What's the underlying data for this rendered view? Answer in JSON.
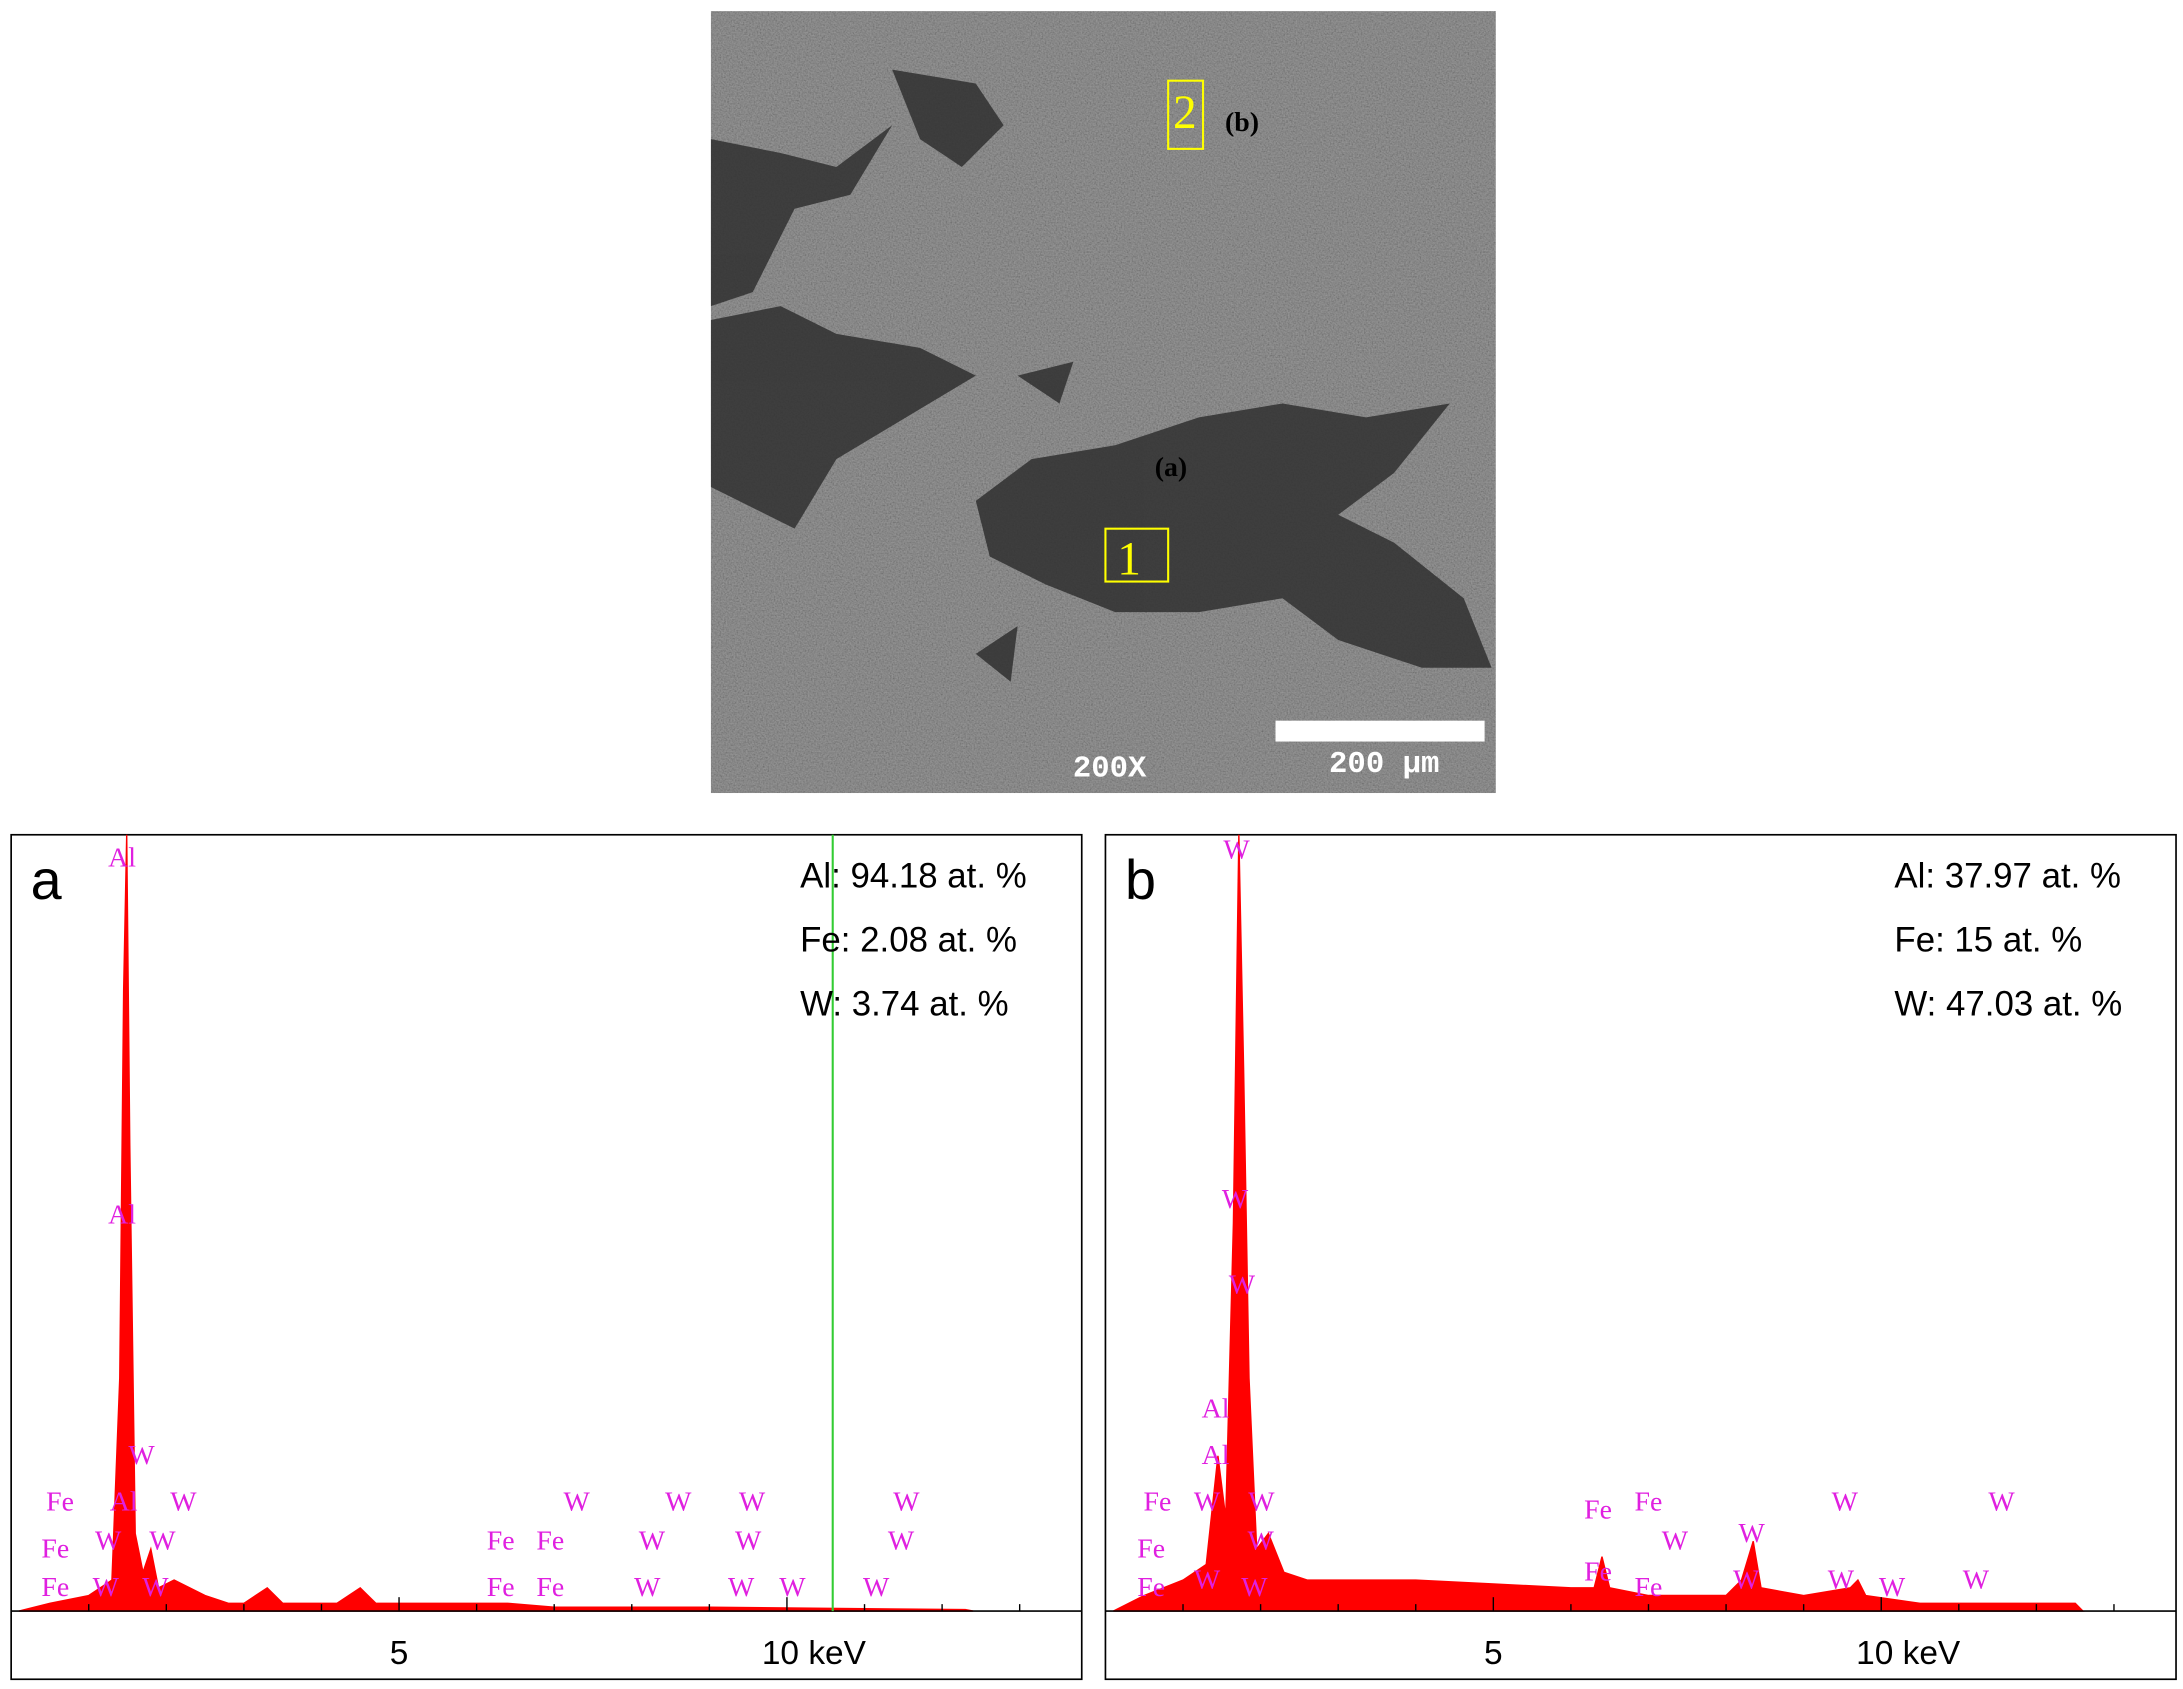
{
  "sem": {
    "labels": {
      "area2": "2",
      "area2_tag": "(b)",
      "area1_tag": "(a)",
      "area1": "1",
      "magnification": "200X",
      "scale": "200 μm"
    }
  },
  "chart_data": [
    {
      "type": "area",
      "panel_label": "a",
      "color": "#ff0000",
      "label_color": "#e020e0",
      "annotations": [
        "Al: 94.18 at. %",
        "Fe: 2.08 at. %",
        "W: 3.74 at. %"
      ],
      "x": [
        0.1,
        0.5,
        1.0,
        1.3,
        1.4,
        1.45,
        1.49,
        1.53,
        1.6,
        1.7,
        1.8,
        1.9,
        2.1,
        2.5,
        2.8,
        3.0,
        3.3,
        3.5,
        4.0,
        4.2,
        4.5,
        4.7,
        5.5,
        6.4,
        7,
        9,
        11,
        12.3,
        12.4
      ],
      "values": [
        0,
        1,
        2,
        4,
        30,
        80,
        100,
        60,
        10,
        5,
        8,
        3,
        4,
        2,
        1,
        1,
        3,
        1,
        1,
        1,
        3,
        1,
        1,
        1,
        0.5,
        0.5,
        0.3,
        0.2,
        0
      ],
      "xlim": [
        0,
        13.8
      ],
      "xticks": [
        5,
        {
          "value": 10,
          "label": "10 keV"
        }
      ],
      "xminorticks": [
        1,
        2,
        3,
        4,
        6,
        7,
        8,
        9,
        11,
        12,
        13
      ],
      "ylim": [
        0,
        100
      ],
      "cursor_x": 10.59,
      "cursor_color": "#33cc33",
      "peak_labels": [
        {
          "text": "Al",
          "x": 1.43,
          "y": 97
        },
        {
          "text": "Al",
          "x": 1.43,
          "y": 51
        },
        {
          "text": "W",
          "x": 1.68,
          "y": 20
        },
        {
          "text": "Fe",
          "x": 0.63,
          "y": 14
        },
        {
          "text": "Al",
          "x": 1.45,
          "y": 14
        },
        {
          "text": "W",
          "x": 2.22,
          "y": 14
        },
        {
          "text": "Fe",
          "x": 0.57,
          "y": 8
        },
        {
          "text": "W",
          "x": 1.25,
          "y": 9
        },
        {
          "text": "W",
          "x": 1.95,
          "y": 9
        },
        {
          "text": "Fe",
          "x": 0.57,
          "y": 3
        },
        {
          "text": "W",
          "x": 1.22,
          "y": 3
        },
        {
          "text": "W",
          "x": 1.86,
          "y": 3
        },
        {
          "text": "W",
          "x": 7.29,
          "y": 14
        },
        {
          "text": "W",
          "x": 8.6,
          "y": 14
        },
        {
          "text": "W",
          "x": 9.55,
          "y": 14
        },
        {
          "text": "W",
          "x": 11.54,
          "y": 14
        },
        {
          "text": "Fe",
          "x": 6.31,
          "y": 9
        },
        {
          "text": "Fe",
          "x": 6.95,
          "y": 9
        },
        {
          "text": "W",
          "x": 8.26,
          "y": 9
        },
        {
          "text": "W",
          "x": 9.5,
          "y": 9
        },
        {
          "text": "W",
          "x": 11.47,
          "y": 9
        },
        {
          "text": "Fe",
          "x": 6.31,
          "y": 3
        },
        {
          "text": "Fe",
          "x": 6.95,
          "y": 3
        },
        {
          "text": "W",
          "x": 8.2,
          "y": 3
        },
        {
          "text": "W",
          "x": 9.41,
          "y": 3
        },
        {
          "text": "W",
          "x": 10.07,
          "y": 3
        },
        {
          "text": "W",
          "x": 11.15,
          "y": 3
        }
      ]
    },
    {
      "type": "area",
      "panel_label": "b",
      "color": "#ff0000",
      "label_color": "#e020e0",
      "annotations": [
        "Al: 37.97 at. %",
        "Fe: 15 at. %",
        "W: 47.03 at. %"
      ],
      "x": [
        0.1,
        0.5,
        1.0,
        1.3,
        1.45,
        1.55,
        1.65,
        1.72,
        1.78,
        1.85,
        1.95,
        2.1,
        2.3,
        2.6,
        3,
        4,
        5,
        6,
        6.3,
        6.4,
        6.5,
        7,
        8,
        8.2,
        8.35,
        8.45,
        9,
        9.6,
        9.7,
        9.8,
        10.5,
        11.5,
        12.5,
        12.6
      ],
      "values": [
        0,
        2,
        4,
        6,
        20,
        12,
        50,
        100,
        70,
        30,
        8,
        10,
        5,
        4,
        4,
        4,
        3.5,
        3,
        3,
        7,
        3,
        2,
        2,
        4,
        9,
        3,
        2,
        3,
        4,
        2,
        1,
        1,
        1,
        0
      ],
      "xlim": [
        0,
        13.8
      ],
      "xticks": [
        5,
        {
          "value": 10,
          "label": "10 keV"
        }
      ],
      "xminorticks": [
        1,
        2,
        3,
        4,
        6,
        7,
        8,
        9,
        11,
        12,
        13
      ],
      "ylim": [
        0,
        100
      ],
      "peak_labels": [
        {
          "text": "W",
          "x": 1.69,
          "y": 98
        },
        {
          "text": "W",
          "x": 1.67,
          "y": 53
        },
        {
          "text": "W",
          "x": 1.76,
          "y": 42
        },
        {
          "text": "Al",
          "x": 1.42,
          "y": 26
        },
        {
          "text": "Al",
          "x": 1.42,
          "y": 20
        },
        {
          "text": "Fe",
          "x": 0.67,
          "y": 14
        },
        {
          "text": "W",
          "x": 1.31,
          "y": 14
        },
        {
          "text": "W",
          "x": 2.01,
          "y": 14
        },
        {
          "text": "Fe",
          "x": 0.59,
          "y": 8
        },
        {
          "text": "W",
          "x": 2.0,
          "y": 9
        },
        {
          "text": "Fe",
          "x": 0.59,
          "y": 3
        },
        {
          "text": "W",
          "x": 1.31,
          "y": 4
        },
        {
          "text": "W",
          "x": 1.92,
          "y": 3
        },
        {
          "text": "Fe",
          "x": 6.35,
          "y": 13
        },
        {
          "text": "Fe",
          "x": 7.0,
          "y": 14
        },
        {
          "text": "W",
          "x": 7.34,
          "y": 9
        },
        {
          "text": "Fe",
          "x": 6.35,
          "y": 5
        },
        {
          "text": "Fe",
          "x": 7.0,
          "y": 3
        },
        {
          "text": "W",
          "x": 8.33,
          "y": 10
        },
        {
          "text": "W",
          "x": 8.26,
          "y": 4
        },
        {
          "text": "W",
          "x": 9.53,
          "y": 14
        },
        {
          "text": "W",
          "x": 9.48,
          "y": 4
        },
        {
          "text": "W",
          "x": 10.14,
          "y": 3
        },
        {
          "text": "W",
          "x": 11.22,
          "y": 4
        },
        {
          "text": "W",
          "x": 11.55,
          "y": 14
        }
      ]
    }
  ]
}
